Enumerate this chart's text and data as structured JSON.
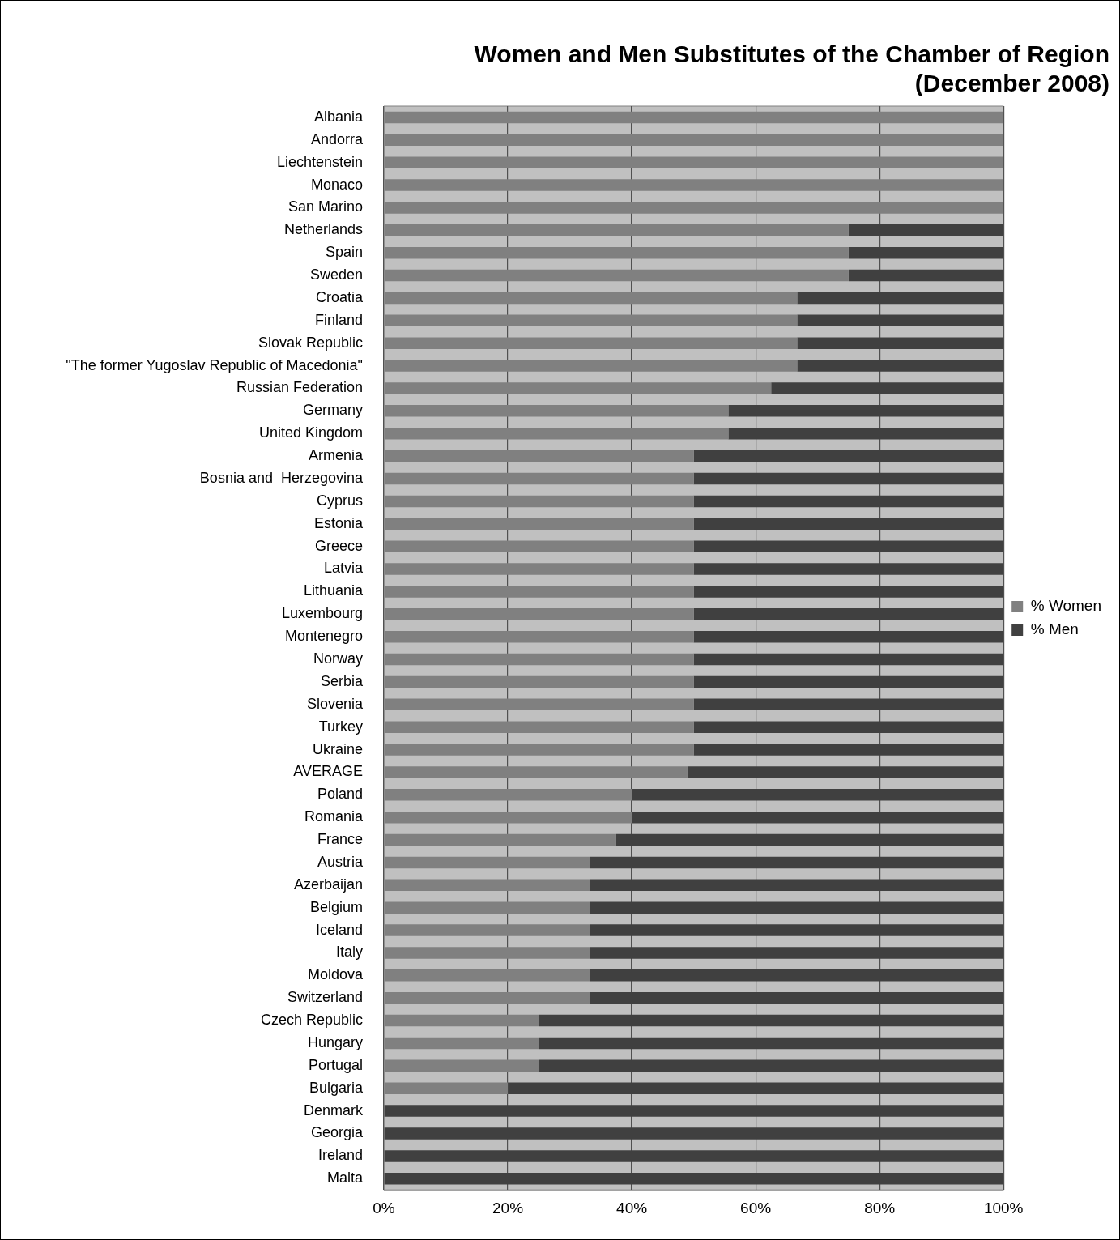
{
  "chart_data": {
    "type": "bar",
    "orientation": "horizontal",
    "stacked": true,
    "title": "Women and Men Substitutes of the Chamber of Region\n(December 2008)",
    "categories": [
      "Albania",
      "Andorra",
      "Liechtenstein",
      "Monaco",
      "San Marino",
      "Netherlands",
      "Spain",
      "Sweden",
      "Croatia",
      "Finland",
      "Slovak Republic",
      "\"The former Yugoslav Republic of Macedonia\"",
      "Russian Federation",
      "Germany",
      "United Kingdom",
      "Armenia",
      "Bosnia and  Herzegovina",
      "Cyprus",
      "Estonia",
      "Greece",
      "Latvia",
      "Lithuania",
      "Luxembourg",
      "Montenegro",
      "Norway",
      "Serbia",
      "Slovenia",
      "Turkey",
      "Ukraine",
      "AVERAGE",
      "Poland",
      "Romania",
      "France",
      "Austria",
      "Azerbaijan",
      "Belgium",
      "Iceland",
      "Italy",
      "Moldova",
      "Switzerland",
      "Czech Republic",
      "Hungary",
      "Portugal",
      "Bulgaria",
      "Denmark",
      "Georgia",
      "Ireland",
      "Malta"
    ],
    "series": [
      {
        "name": "% Women",
        "color": "#808080",
        "values": [
          100,
          100,
          100,
          100,
          100,
          75,
          75,
          75,
          66.7,
          66.7,
          66.7,
          66.7,
          62.5,
          55.6,
          55.6,
          50,
          50,
          50,
          50,
          50,
          50,
          50,
          50,
          50,
          50,
          50,
          50,
          50,
          50,
          49,
          40,
          40,
          37.5,
          33.3,
          33.3,
          33.3,
          33.3,
          33.3,
          33.3,
          33.3,
          25,
          25,
          25,
          20,
          0,
          0,
          0,
          0
        ]
      },
      {
        "name": "% Men",
        "color": "#404040",
        "values": [
          0,
          0,
          0,
          0,
          0,
          25,
          25,
          25,
          33.3,
          33.3,
          33.3,
          33.3,
          37.5,
          44.4,
          44.4,
          50,
          50,
          50,
          50,
          50,
          50,
          50,
          50,
          50,
          50,
          50,
          50,
          50,
          50,
          51,
          60,
          60,
          62.5,
          66.7,
          66.7,
          66.7,
          66.7,
          66.7,
          66.7,
          66.7,
          75,
          75,
          75,
          80,
          100,
          100,
          100,
          100
        ]
      }
    ],
    "xlim": [
      0,
      100
    ],
    "xticks": [
      {
        "value": 0,
        "label": "0%"
      },
      {
        "value": 20,
        "label": "20%"
      },
      {
        "value": 40,
        "label": "40%"
      },
      {
        "value": 60,
        "label": "60%"
      },
      {
        "value": 80,
        "label": "80%"
      },
      {
        "value": 100,
        "label": "100%"
      }
    ],
    "grid": "x",
    "legend": "right"
  }
}
